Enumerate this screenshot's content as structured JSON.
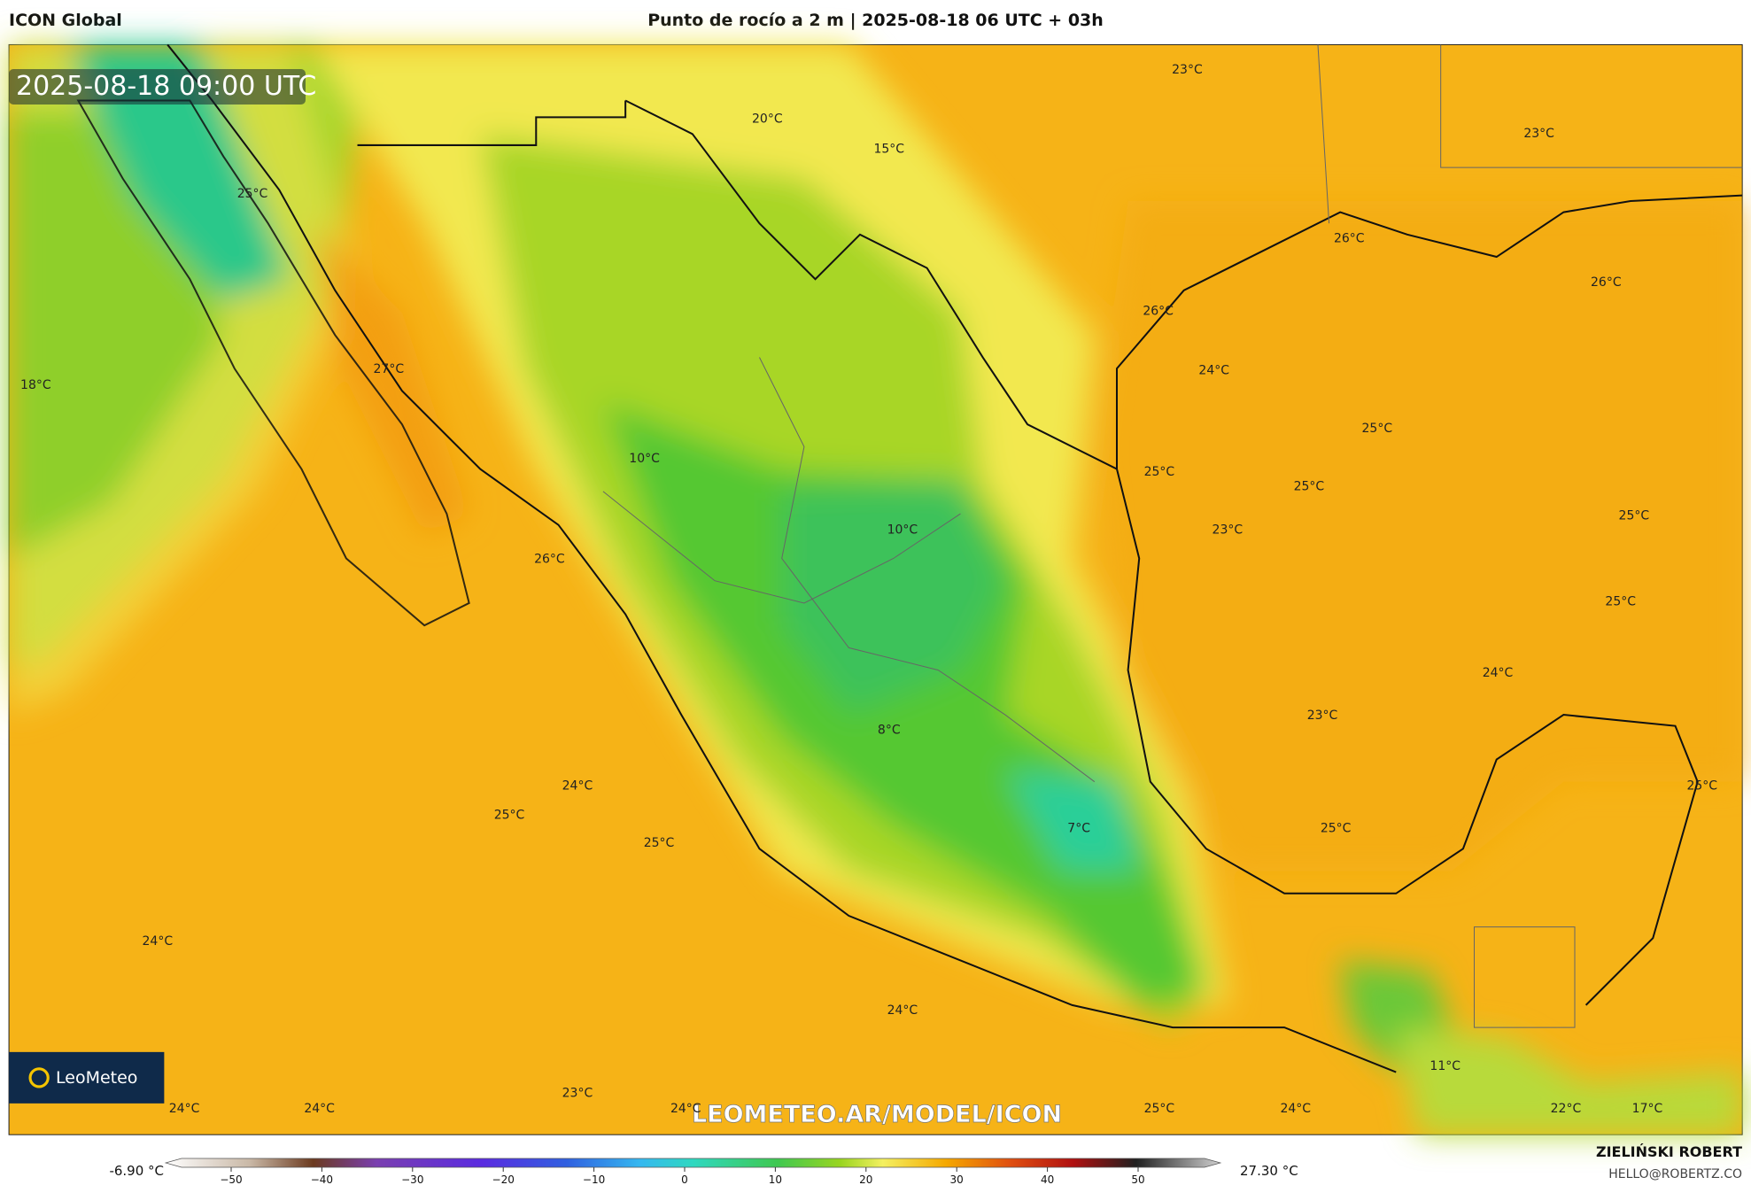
{
  "header": {
    "model": "ICON Global",
    "title": "Punto de rocío a 2 m | 2025-08-18 06 UTC + 03h"
  },
  "map": {
    "timestamp": "2025-08-18 09:00 UTC",
    "watermark": "LEOMETEO.AR/MODEL/ICON",
    "logo": "LeoMeteo",
    "labels": [
      "23°C",
      "20°C",
      "15°C",
      "23°C",
      "25°C",
      "26°C",
      "26°C",
      "26°C",
      "18°C",
      "27°C",
      "24°C",
      "25°C",
      "10°C",
      "25°C",
      "25°C",
      "10°C",
      "23°C",
      "25°C",
      "26°C",
      "25°C",
      "24°C",
      "23°C",
      "8°C",
      "24°C",
      "25°C",
      "25°C",
      "7°C",
      "25°C",
      "25°C",
      "24°C",
      "24°C",
      "11°C",
      "23°C",
      "24°C",
      "24°C",
      "24°C",
      "25°C",
      "24°C",
      "22°C",
      "17°C"
    ]
  },
  "colorbar": {
    "min_label": "-6.90 °C",
    "max_label": "27.30 °C",
    "ticks": [
      "−50",
      "−40",
      "−30",
      "−20",
      "−10",
      "0",
      "10",
      "20",
      "30",
      "40",
      "50"
    ]
  },
  "footer": {
    "author": "ZIELIŃSKI ROBERT",
    "email": "HELLO@ROBERTZ.CO"
  }
}
